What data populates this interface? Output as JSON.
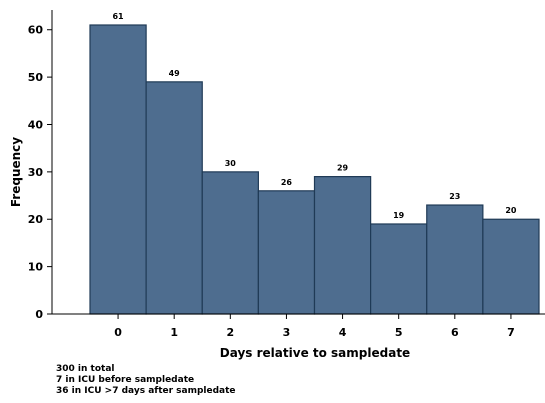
{
  "chart_data": {
    "type": "bar",
    "categories": [
      "0",
      "1",
      "2",
      "3",
      "4",
      "5",
      "6",
      "7"
    ],
    "values": [
      61,
      49,
      30,
      26,
      29,
      19,
      23,
      20
    ],
    "xlabel": "Days relative to sampledate",
    "ylabel": "Frequency",
    "ylim": [
      0,
      65
    ],
    "yticks": [
      0,
      10,
      20,
      30,
      40,
      50,
      60
    ],
    "bar_color": "#4e6d8f",
    "bar_edge_color": "#1f3a56",
    "grid": false,
    "legend": "none"
  },
  "notes": [
    "300 in total",
    "7 in ICU before sampledate",
    "36 in ICU >7 days after sampledate"
  ]
}
